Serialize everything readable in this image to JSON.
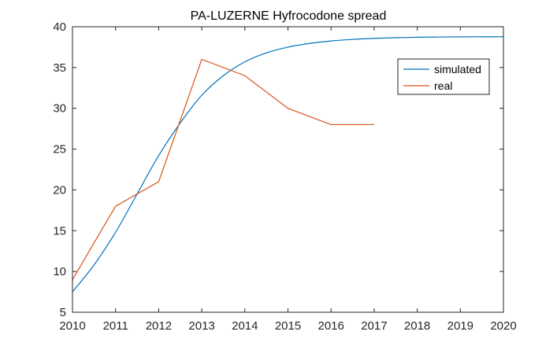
{
  "chart_data": {
    "type": "line",
    "title": "PA-LUZERNE Hyfrocodone spread",
    "xlabel": "",
    "ylabel": "",
    "xlim": [
      2010,
      2020
    ],
    "ylim": [
      5,
      40
    ],
    "xticks": [
      "2010",
      "2011",
      "2012",
      "2013",
      "2014",
      "2015",
      "2016",
      "2017",
      "2018",
      "2019",
      "2020"
    ],
    "yticks": [
      "5",
      "10",
      "15",
      "20",
      "25",
      "30",
      "35",
      "40"
    ],
    "grid": false,
    "legend_position": "top-right",
    "series": [
      {
        "name": "simulated",
        "color": "#0072BD",
        "x": [
          2010,
          2010.5,
          2011,
          2011.5,
          2012,
          2012.5,
          2013,
          2013.5,
          2014,
          2014.5,
          2015,
          2015.5,
          2016,
          2016.5,
          2017,
          2017.5,
          2018,
          2018.5,
          2019,
          2019.5,
          2020
        ],
        "y": [
          7.5,
          10.8,
          14.8,
          19.5,
          24.2,
          28.2,
          31.6,
          34.0,
          35.7,
          36.8,
          37.5,
          37.95,
          38.25,
          38.45,
          38.58,
          38.66,
          38.71,
          38.74,
          38.76,
          38.77,
          38.78
        ]
      },
      {
        "name": "real",
        "color": "#D95319",
        "x": [
          2010,
          2011,
          2012,
          2013,
          2014,
          2015,
          2016,
          2017
        ],
        "y": [
          9,
          18,
          21,
          36,
          34,
          30,
          28,
          28
        ]
      }
    ]
  }
}
